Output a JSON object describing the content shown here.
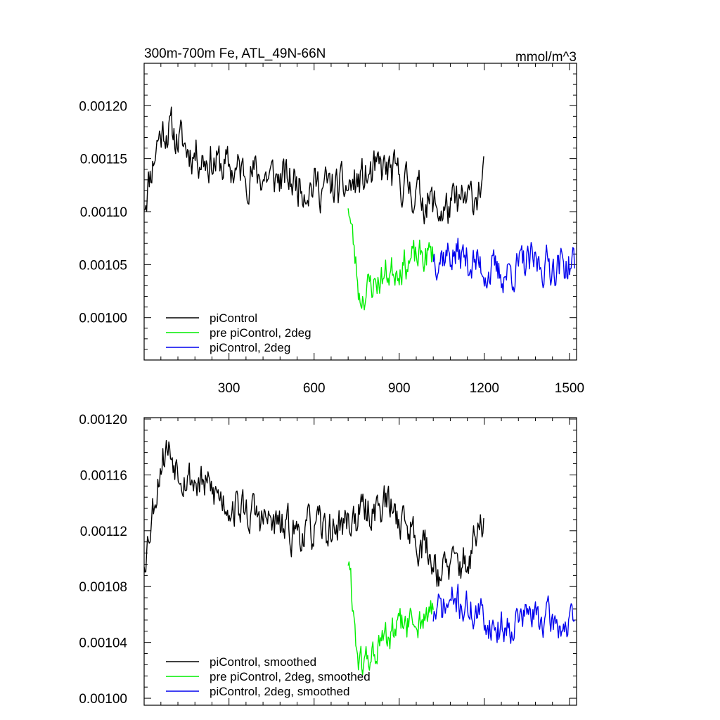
{
  "chart_data": [
    {
      "type": "line",
      "title": "300m-700m Fe, ATL_49N-66N",
      "units": "mmol/m^3",
      "xlim": [
        1,
        1525
      ],
      "ylim": [
        0.00096,
        0.00124
      ],
      "x_ticks": [
        300,
        600,
        900,
        1200,
        1500
      ],
      "y_ticks": [
        0.001,
        0.00105,
        0.0011,
        0.00115,
        0.0012
      ],
      "y_tick_labels": [
        "0.00100",
        "0.00105",
        "0.00110",
        "0.00115",
        "0.00120"
      ],
      "x_tick_labels": [
        "300",
        "600",
        "900",
        "1200",
        "1500"
      ],
      "legend_position": "bottom-left",
      "series": [
        {
          "name": "piControl",
          "color": "#000000",
          "x_range": [
            1,
            1200
          ],
          "base": [
            [
              1,
              0.00111
            ],
            [
              50,
              0.00117
            ],
            [
              80,
              0.00118
            ],
            [
              150,
              0.00116
            ],
            [
              300,
              0.00114
            ],
            [
              500,
              0.00113
            ],
            [
              700,
              0.00112
            ],
            [
              850,
              0.00114
            ],
            [
              950,
              0.00112
            ],
            [
              1050,
              0.0011
            ],
            [
              1150,
              0.00111
            ],
            [
              1200,
              0.00113
            ]
          ],
          "noise": 2.2e-05,
          "seed": 11
        },
        {
          "name": "pre piControl, 2deg",
          "color": "#00ee00",
          "x_range": [
            720,
            1020
          ],
          "base": [
            [
              720,
              0.00111
            ],
            [
              760,
              0.00102
            ],
            [
              800,
              0.00103
            ],
            [
              900,
              0.00105
            ],
            [
              1020,
              0.00106
            ]
          ],
          "noise": 1.8e-05,
          "seed": 23
        },
        {
          "name": "piControl, 2deg",
          "color": "#0000ee",
          "x_range": [
            1020,
            1520
          ],
          "base": [
            [
              1020,
              0.00106
            ],
            [
              1100,
              0.00106
            ],
            [
              1250,
              0.00104
            ],
            [
              1350,
              0.00105
            ],
            [
              1520,
              0.00105
            ]
          ],
          "noise": 2e-05,
          "seed": 37
        }
      ]
    },
    {
      "type": "line",
      "xlim": [
        1,
        1525
      ],
      "ylim": [
        0.000995,
        0.001201
      ],
      "y_ticks": [
        0.001,
        0.00104,
        0.00108,
        0.00112,
        0.00116,
        0.0012
      ],
      "y_tick_labels": [
        "0.00100",
        "0.00104",
        "0.00108",
        "0.00112",
        "0.00116",
        "0.00120"
      ],
      "legend_position": "bottom-left",
      "series": [
        {
          "name": "piControl, smoothed",
          "color": "#000000",
          "x_range": [
            1,
            1200
          ],
          "base": [
            [
              1,
              0.0011
            ],
            [
              60,
              0.00117
            ],
            [
              80,
              0.00118
            ],
            [
              150,
              0.00116
            ],
            [
              300,
              0.00114
            ],
            [
              500,
              0.00112
            ],
            [
              650,
              0.00112
            ],
            [
              850,
              0.00114
            ],
            [
              950,
              0.00112
            ],
            [
              1050,
              0.00109
            ],
            [
              1150,
              0.0011
            ],
            [
              1200,
              0.00113
            ]
          ],
          "noise": 1.6e-05,
          "seed": 53
        },
        {
          "name": "pre piControl, 2deg, smoothed",
          "color": "#00ee00",
          "x_range": [
            720,
            1020
          ],
          "base": [
            [
              720,
              0.0011
            ],
            [
              760,
              0.00102
            ],
            [
              800,
              0.00103
            ],
            [
              900,
              0.00105
            ],
            [
              1020,
              0.00106
            ]
          ],
          "noise": 1.4e-05,
          "seed": 61
        },
        {
          "name": "piControl, 2deg, smoothed",
          "color": "#0000ee",
          "x_range": [
            1020,
            1520
          ],
          "base": [
            [
              1020,
              0.00106
            ],
            [
              1100,
              0.00107
            ],
            [
              1250,
              0.00105
            ],
            [
              1350,
              0.00106
            ],
            [
              1520,
              0.00105
            ]
          ],
          "noise": 1.4e-05,
          "seed": 71
        }
      ]
    }
  ]
}
